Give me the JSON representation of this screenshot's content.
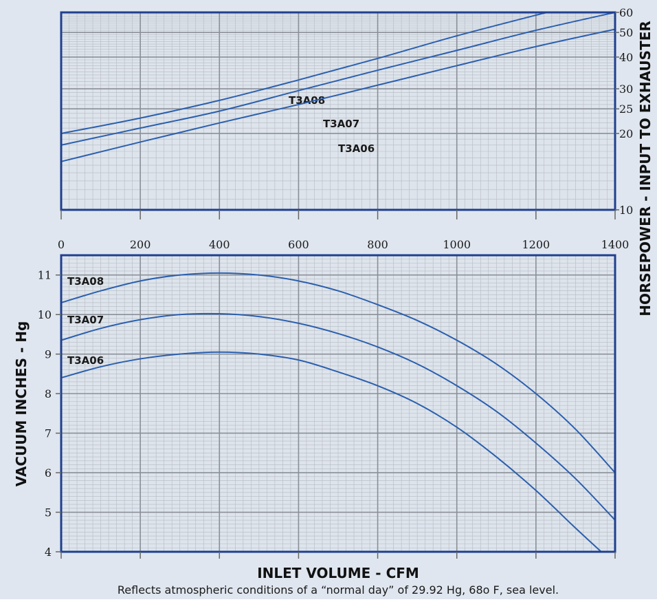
{
  "colors": {
    "background": "#dfe6ef",
    "plot_fill": "#dee4ec",
    "frame": "#1f3f8f",
    "curve": "#2a5fae",
    "grid_major": "#8a8f98",
    "grid_minor": "#b5bac3"
  },
  "footnote": "Reflects atmospheric conditions of a “normal day” of 29.92 Hg, 68o F, sea level.",
  "chart_data": [
    {
      "id": "horsepower",
      "type": "line",
      "y_scale": "log",
      "xlim": [
        0,
        1400
      ],
      "ylim": [
        10,
        60
      ],
      "x_ticks": [
        "0",
        "200",
        "400",
        "600",
        "800",
        "1000",
        "1200",
        "1400"
      ],
      "y_ticks": [
        {
          "value": 10,
          "label": "10"
        },
        {
          "value": 20,
          "label": "20"
        },
        {
          "value": 25,
          "label": "25"
        },
        {
          "value": 30,
          "label": "30"
        },
        {
          "value": 40,
          "label": "40"
        },
        {
          "value": 50,
          "label": "50"
        },
        {
          "value": 60,
          "label": "60"
        }
      ],
      "y_axis_position": "right",
      "xlabel": "",
      "ylabel": "HORSEPOWER - INPUT TO EXHAUSTER",
      "grid": true,
      "series": [
        {
          "name": "T3A08",
          "x": [
            0,
            200,
            400,
            600,
            800,
            1000,
            1200,
            1230
          ],
          "y": [
            20,
            23,
            27,
            32.5,
            39.5,
            48.5,
            58.5,
            60
          ]
        },
        {
          "name": "T3A07",
          "x": [
            0,
            200,
            400,
            600,
            800,
            1000,
            1200,
            1400
          ],
          "y": [
            18,
            21,
            24.5,
            29.5,
            35.5,
            42.5,
            51,
            60
          ]
        },
        {
          "name": "T3A06",
          "x": [
            0,
            200,
            400,
            600,
            800,
            1000,
            1200,
            1400
          ],
          "y": [
            15.5,
            18.5,
            22,
            26,
            31,
            37,
            44,
            51.5
          ]
        }
      ]
    },
    {
      "id": "vacuum",
      "type": "line",
      "xlim": [
        0,
        1400
      ],
      "ylim": [
        4,
        11.5
      ],
      "y_ticks": [
        {
          "value": 4,
          "label": "4"
        },
        {
          "value": 5,
          "label": "5"
        },
        {
          "value": 6,
          "label": "6"
        },
        {
          "value": 7,
          "label": "7"
        },
        {
          "value": 8,
          "label": "8"
        },
        {
          "value": 9,
          "label": "9"
        },
        {
          "value": 10,
          "label": "10"
        },
        {
          "value": 11,
          "label": "11"
        }
      ],
      "xlabel": "INLET VOLUME - CFM",
      "ylabel": "VACUUM INCHES - Hg",
      "grid": true,
      "series": [
        {
          "name": "T3A08",
          "x": [
            0,
            100,
            200,
            300,
            400,
            500,
            600,
            700,
            800,
            900,
            1000,
            1100,
            1200,
            1300,
            1400
          ],
          "y": [
            10.3,
            10.6,
            10.85,
            11.0,
            11.05,
            11.0,
            10.85,
            10.6,
            10.25,
            9.85,
            9.35,
            8.75,
            8.0,
            7.1,
            6.0
          ]
        },
        {
          "name": "T3A07",
          "x": [
            0,
            100,
            200,
            300,
            400,
            500,
            600,
            700,
            800,
            900,
            1000,
            1100,
            1200,
            1300,
            1400
          ],
          "y": [
            9.35,
            9.65,
            9.87,
            10.0,
            10.02,
            9.95,
            9.78,
            9.52,
            9.18,
            8.75,
            8.2,
            7.55,
            6.75,
            5.85,
            4.8
          ]
        },
        {
          "name": "T3A06",
          "x": [
            0,
            100,
            200,
            300,
            400,
            500,
            600,
            700,
            800,
            900,
            1000,
            1100,
            1200,
            1300,
            1365
          ],
          "y": [
            8.4,
            8.68,
            8.88,
            9.0,
            9.05,
            9.0,
            8.85,
            8.55,
            8.2,
            7.75,
            7.15,
            6.4,
            5.55,
            4.6,
            4.0
          ]
        }
      ]
    }
  ]
}
